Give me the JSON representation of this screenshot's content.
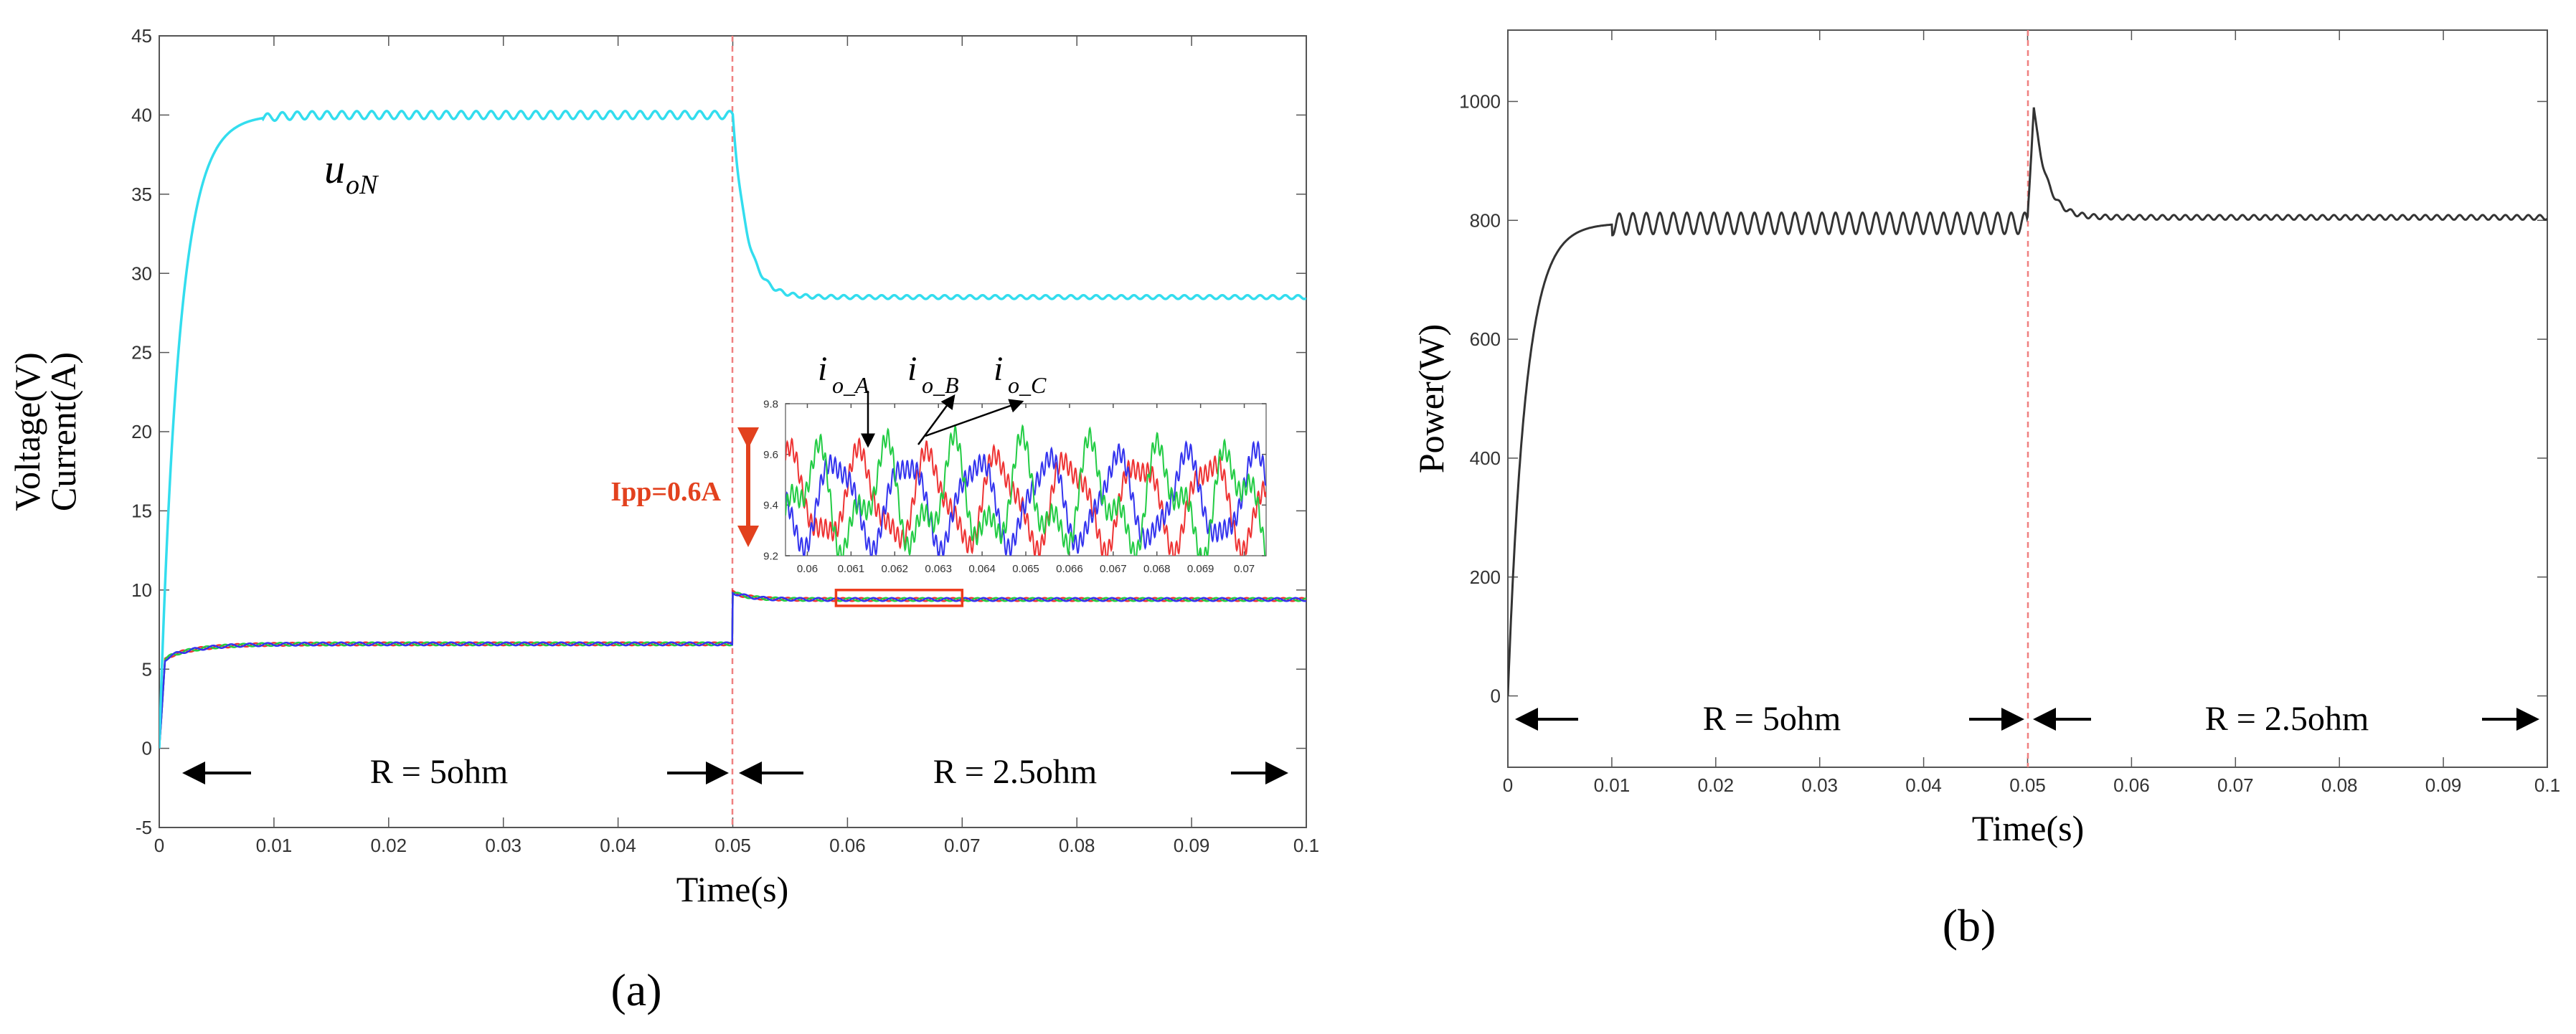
{
  "chart_data": [
    {
      "panel_label": "(a)",
      "type": "line",
      "title": "",
      "xlabel": "Time(s)",
      "ylabel": [
        "Voltage(V)",
        "Current(A)"
      ],
      "xlim": [
        0,
        0.1
      ],
      "ylim": [
        -5,
        45
      ],
      "xticks": [
        0,
        0.01,
        0.02,
        0.03,
        0.04,
        0.05,
        0.06,
        0.07,
        0.08,
        0.09,
        0.1
      ],
      "yticks": [
        -5,
        0,
        5,
        10,
        15,
        20,
        25,
        30,
        35,
        40,
        45
      ],
      "xtick_labels": [
        "0",
        "0.01",
        "0.02",
        "0.03",
        "0.04",
        "0.05",
        "0.06",
        "0.07",
        "0.08",
        "0.09",
        "0.1"
      ],
      "ytick_labels": [
        "-5",
        "0",
        "5",
        "10",
        "15",
        "20",
        "25",
        "30",
        "35",
        "40",
        "45"
      ],
      "load_step_time": 0.05,
      "series": [
        {
          "name": "u_oN",
          "color": "#33ddee",
          "steady_before": 40.0,
          "steady_after": 28.5,
          "ripple_before": 0.25,
          "ripple_after": 0.12
        },
        {
          "name": "i_o_A",
          "color": "#ee3333",
          "steady_before": 6.6,
          "steady_after": 9.4
        },
        {
          "name": "i_o_B",
          "color": "#3333ee",
          "steady_before": 6.6,
          "steady_after": 9.4
        },
        {
          "name": "i_o_C",
          "color": "#22cc44",
          "steady_before": 6.6,
          "steady_after": 9.4
        }
      ],
      "annotations": {
        "series_label_main": "u",
        "series_label_sub": "oN",
        "region_before": "R = 5ohm",
        "region_after": "R = 2.5ohm",
        "ipp_label": "Ipp=0.6A",
        "phase_labels": [
          {
            "main": "i",
            "sub": "o_A"
          },
          {
            "main": "i",
            "sub": "o_B"
          },
          {
            "main": "i",
            "sub": "o_C"
          }
        ]
      },
      "inset": {
        "xlim": [
          0.0595,
          0.0705
        ],
        "ylim": [
          9.2,
          9.8
        ],
        "xticks": [
          0.06,
          0.061,
          0.062,
          0.063,
          0.064,
          0.065,
          0.066,
          0.067,
          0.068,
          0.069,
          0.07
        ],
        "xtick_labels": [
          "0.06",
          "0.061",
          "0.062",
          "0.063",
          "0.064",
          "0.065",
          "0.066",
          "0.067",
          "0.068",
          "0.069",
          "0.07"
        ],
        "yticks": [
          9.2,
          9.4,
          9.6,
          9.8
        ],
        "ytick_labels": [
          "9.2",
          "9.4",
          "9.6",
          "9.8"
        ],
        "ripple_period": 0.0016,
        "mean": 9.42,
        "peak_to_peak": 0.6
      },
      "zoom_box": {
        "x_range": [
          0.059,
          0.07
        ],
        "y_range": [
          9.0,
          10.0
        ]
      }
    },
    {
      "panel_label": "(b)",
      "type": "line",
      "title": "",
      "xlabel": "Time(s)",
      "ylabel": "Power(W)",
      "xlim": [
        0,
        0.1
      ],
      "ylim": [
        -120,
        1120
      ],
      "xticks": [
        0,
        0.01,
        0.02,
        0.03,
        0.04,
        0.05,
        0.06,
        0.07,
        0.08,
        0.09,
        0.1
      ],
      "yticks": [
        0,
        200,
        400,
        600,
        800,
        1000
      ],
      "xtick_labels": [
        "0",
        "0.01",
        "0.02",
        "0.03",
        "0.04",
        "0.05",
        "0.06",
        "0.07",
        "0.08",
        "0.09",
        "0.1"
      ],
      "ytick_labels": [
        "0",
        "200",
        "400",
        "600",
        "800",
        "1000"
      ],
      "load_step_time": 0.05,
      "series": [
        {
          "name": "Power",
          "color": "#333333",
          "steady_before": 795,
          "ripple_before": 18,
          "peak_at_step": 990,
          "steady_after": 805
        }
      ],
      "annotations": {
        "region_before": "R = 5ohm",
        "region_after": "R = 2.5ohm"
      }
    }
  ],
  "captions": {
    "a": "(a)",
    "b": "(b)"
  }
}
